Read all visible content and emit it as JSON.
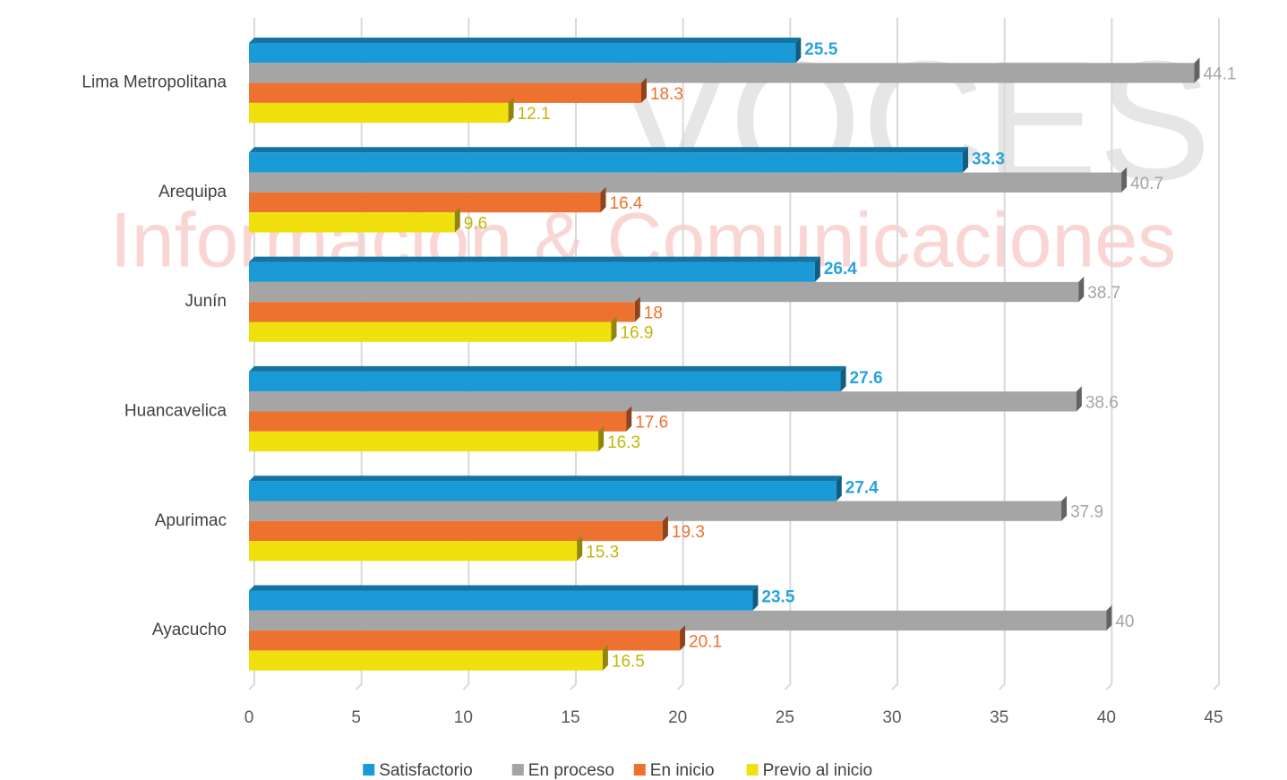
{
  "chart_data": {
    "type": "bar",
    "orientation": "horizontal",
    "watermark": {
      "title": "VOCES",
      "subtitle": "Información & Comunicaciones"
    },
    "categories": [
      "Lima Metropolitana",
      "Arequipa",
      "Junín",
      "Huancavelica",
      "Apurimac",
      "Ayacucho"
    ],
    "series": [
      {
        "name": "Satisfactorio",
        "color": "#1a9bd7",
        "label_color": "#2aa3dc",
        "values": [
          25.5,
          33.3,
          26.4,
          27.6,
          27.4,
          23.5
        ]
      },
      {
        "name": "En proceso",
        "color": "#a5a5a5",
        "label_color": "#a5a5a5",
        "values": [
          44.1,
          40.7,
          38.7,
          38.6,
          37.9,
          40
        ]
      },
      {
        "name": "En inicio",
        "color": "#ed7230",
        "label_color": "#ed7230",
        "values": [
          18.3,
          16.4,
          18,
          17.6,
          19.3,
          20.1
        ]
      },
      {
        "name": "Previo al inicio",
        "color": "#f0e10e",
        "label_color": "#c5b50a",
        "values": [
          12.1,
          9.6,
          16.9,
          16.3,
          15.3,
          16.5
        ]
      }
    ],
    "xlim": [
      0,
      45
    ],
    "xticks": [
      0,
      5,
      10,
      15,
      20,
      25,
      30,
      35,
      40,
      45
    ],
    "grid": true,
    "legend": "bottom"
  }
}
